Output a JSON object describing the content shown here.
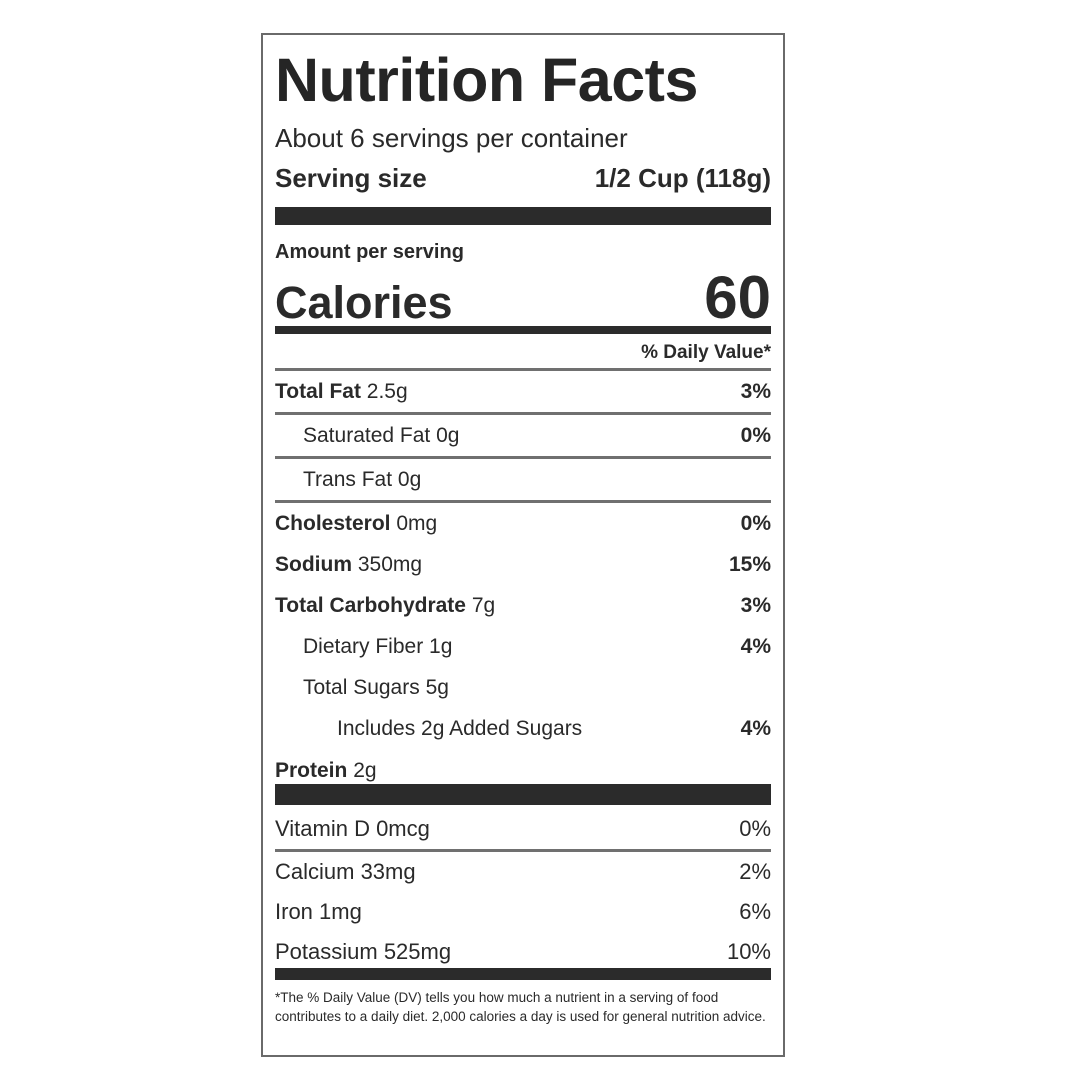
{
  "title": "Nutrition Facts",
  "servings_per_container": "About 6 servings per container",
  "serving_size": {
    "label": "Serving size",
    "value": "1/2 Cup (118g)"
  },
  "amount_per_serving": "Amount per serving",
  "calories": {
    "label": "Calories",
    "value": "60"
  },
  "daily_value_header": "% Daily Value*",
  "nutrients": [
    {
      "name": "Total Fat",
      "amount": "2.5g",
      "dv": "3%"
    },
    {
      "name": "Saturated Fat",
      "amount": "0g",
      "dv": "0%"
    },
    {
      "name": "Trans Fat",
      "amount": "0g",
      "dv": ""
    },
    {
      "name": "Cholesterol",
      "amount": "0mg",
      "dv": "0%"
    },
    {
      "name": "Sodium",
      "amount": "350mg",
      "dv": "15%"
    },
    {
      "name": "Total Carbohydrate",
      "amount": "7g",
      "dv": "3%"
    },
    {
      "name": "Dietary Fiber",
      "amount": "1g",
      "dv": "4%"
    },
    {
      "name": "Total Sugars",
      "amount": "5g",
      "dv": ""
    },
    {
      "name": "Includes 2g Added Sugars",
      "amount": "",
      "dv": "4%"
    },
    {
      "name": "Protein",
      "amount": "2g",
      "dv": ""
    }
  ],
  "vitamins": [
    {
      "text": "Vitamin D 0mcg",
      "dv": "0%"
    },
    {
      "text": "Calcium 33mg",
      "dv": "2%"
    },
    {
      "text": "Iron 1mg",
      "dv": "6%"
    },
    {
      "text": "Potassium 525mg",
      "dv": "10%"
    }
  ],
  "footnote": "*The % Daily Value (DV) tells you how much a nutrient in a serving of food contributes to a daily diet. 2,000 calories a day is used for general nutrition advice."
}
